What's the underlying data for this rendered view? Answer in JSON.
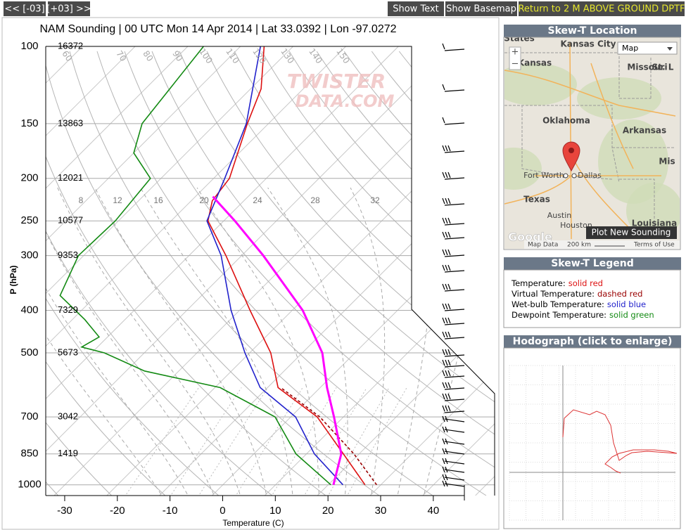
{
  "nav": {
    "prev": "<< [-03]",
    "next": "[+03] >>",
    "show_text": "Show Text",
    "show_basemap": "Show Basemap",
    "return": "Return to 2 M ABOVE GROUND DPTF"
  },
  "chart_data": {
    "type": "skewt",
    "title": "NAM Sounding | 00 UTC Mon 14 Apr 2014 | Lat 33.0392 | Lon -97.0272",
    "x_label": "Temperature (C)",
    "y_label": "P (hPa)",
    "watermark": [
      "TWISTER",
      "DATA.COM"
    ],
    "xlim": [
      -33.6,
      45.9
    ],
    "ylim": [
      1058,
      100
    ],
    "log_y": true,
    "grid": true,
    "xticks": [
      -30,
      -20,
      -10,
      0,
      10,
      20,
      30,
      40
    ],
    "yticks": [
      100,
      150,
      200,
      250,
      300,
      400,
      500,
      700,
      850,
      1000
    ],
    "height_labels": [
      16372,
      13863,
      12021,
      10577,
      9353,
      7329,
      5673,
      3042,
      1419,
      null
    ],
    "theta_labels": [
      60,
      70,
      80,
      90,
      100,
      110,
      120,
      130,
      140,
      150
    ],
    "mixing_ratio_labels": [
      8,
      12,
      16,
      20,
      24,
      28,
      32
    ],
    "series": [
      {
        "name": "Temperature:",
        "style": "solid red",
        "color": "#dd1111",
        "dash": false,
        "pressure": [
          1000,
          850,
          700,
          600,
          500,
          400,
          300,
          250,
          225,
          200,
          150,
          125,
          100
        ],
        "values": [
          27,
          17,
          5,
          -8,
          -16,
          -28,
          -43,
          -53,
          -56,
          -57,
          -64,
          -68,
          -75.5
        ]
      },
      {
        "name": "Virtual Temperature:",
        "style": "dashed red",
        "color": "#990000",
        "dash": true,
        "pressure": [
          1000,
          850,
          700,
          600
        ],
        "values": [
          29.2,
          19,
          5.5,
          -7.5
        ]
      },
      {
        "name": "Wet-bulb Temperature:",
        "style": "solid blue",
        "color": "#2222cc",
        "dash": false,
        "pressure": [
          1000,
          850,
          700,
          600,
          500,
          400,
          300,
          250,
          200,
          150,
          100
        ],
        "values": [
          22.8,
          11.5,
          0.9,
          -11.4,
          -20.9,
          -31.6,
          -43.9,
          -53.2,
          -57.9,
          -64.2,
          -76.2
        ]
      },
      {
        "name": "Dewpoint Temperature:",
        "style": "solid green",
        "color": "#138a13",
        "dash": false,
        "pressure": [
          1000,
          850,
          700,
          600,
          550,
          500,
          485,
          460,
          420,
          370,
          300,
          250,
          200,
          175,
          150,
          100
        ],
        "values": [
          20.5,
          8,
          -3,
          -19,
          -36.5,
          -47.6,
          -53,
          -51.6,
          -57.6,
          -66.9,
          -71,
          -70.6,
          -72,
          -80,
          -84,
          -87
        ]
      },
      {
        "color": "#ff00ff",
        "dash": false,
        "width": 3,
        "pressure": [
          1000,
          850,
          700,
          600,
          500,
          400,
          300,
          250,
          220
        ],
        "values": [
          21,
          16.6,
          8.2,
          1.3,
          -6.2,
          -18,
          -35.9,
          -47.9,
          -56.7
        ]
      }
    ]
  },
  "map": {
    "header": "Skew-T Location",
    "select": "Map",
    "labels": [
      "Kansas City",
      "Kansas",
      "Missouri",
      "St. L",
      "Oklahoma",
      "Arkansas",
      "Mis",
      "Fort Worth",
      "Dallas",
      "Texas",
      "Austin",
      "Louisiana",
      "Houston",
      "States"
    ],
    "button": "Plot New Sounding",
    "google": "Google",
    "attribution": "Map Data",
    "scale": "200 km",
    "terms": "Terms of Use"
  },
  "legend": {
    "header": "Skew-T Legend"
  },
  "hodograph": {
    "header": "Hodograph (click to enlarge)"
  }
}
